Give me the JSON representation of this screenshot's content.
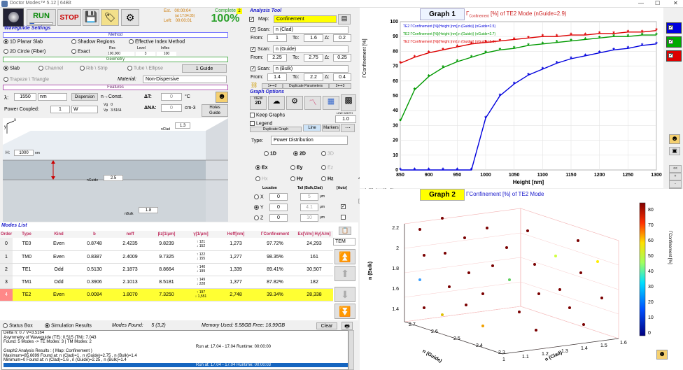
{
  "app": {
    "title": "Doctor Modes™ 5.12  |  64Bit"
  },
  "toolbar": {
    "run": "RUN",
    "stop": "STOP",
    "est_label": "Est.",
    "est_value": "00:00:04",
    "est_at": "(at 17:04:35)",
    "left_label": "Left:",
    "left_value": "00:00:01",
    "complete_label": "Complete",
    "complete_badge": "2",
    "complete_pct": "100%"
  },
  "waveguide": {
    "title": "Waveguide Settings",
    "method_hdr": "Method",
    "m1": "1D Planar Slab",
    "m2": "Shadow Regions",
    "m3": "Effective Index Method",
    "m4": "2D Circle (Fiber)",
    "m5": "Exact",
    "res_label": "Res",
    "level_label": "Level",
    "infles_label": "Infles",
    "res_value": "100,000",
    "level_value": "3",
    "infles_value": "100",
    "geom_hdr": "Geometry",
    "g1": "Slab",
    "g2": "Channel",
    "g3": "Rib \\ Strip",
    "g4": "Tube \\ Ellipse",
    "g5": "Trapeze \\ Triangle",
    "guide_btn": "1 Guide",
    "material_label": "Material:",
    "material_value": "Non-Dispersive",
    "feat_hdr": "Features",
    "lambda_label": "λ:",
    "lambda_value": "1550",
    "lambda_unit": "nm",
    "dispersion_btn": "Dispersion",
    "nconst": "n→Const.",
    "dT_label": "ΔT:",
    "dT_value": "0",
    "dT_unit": "°C",
    "power_label": "Power Coupled:",
    "power_value": "1",
    "power_unit": "W",
    "vg_label": "Vg",
    "vg_value": "0",
    "vp_label": "Vp",
    "vp_value": "3.5164",
    "dNA_label": "ΔNA:",
    "dNA_value": "0",
    "dNA_unit": "cm-3",
    "holes_btn": "Holes",
    "holes_sub": "Guide",
    "nclad_label": "nClad",
    "nclad_value": "1.3",
    "h_label": "H:",
    "h_value": "1000",
    "h_unit": "nm",
    "nguide_label": "nGuide",
    "nguide_value": "2.5",
    "nbulk_label": "nBulk",
    "nbulk_value": "1.8",
    "axis_y": "y",
    "axis_x": "x"
  },
  "analysis": {
    "title": "Analysis Tool",
    "map_label": "Map:",
    "map_value": "Confinement",
    "scan1_label": "Scan:",
    "scan1_value": "n (Clad)",
    "from_label": "From:",
    "to_label": "To:",
    "delta_label": "Δ:",
    "s1_from": "1",
    "s1_to": "1.6",
    "s1_d": "0.2",
    "scan2_value": "n (Guide)",
    "s2_from": "2.25",
    "s2_to": "2.75",
    "s2_d": "0.25",
    "scan3_value": "n (Bulk)",
    "s3_from": "1.4",
    "s3_to": "2.2",
    "s3_d": "0.4",
    "dup_params": "Duplicate Parameters",
    "ar1": "1⟷2",
    "ar2": "2⟷3"
  },
  "graph_opts": {
    "title": "Graph Options",
    "keep": "Keep Graphs",
    "legend": "Legend",
    "dup_graph": "Duplicate Graph",
    "line": "Line",
    "markers": "Markers",
    "line_width_label": "LINE WIDTH",
    "line_width": "1.0",
    "type_label": "Type:",
    "type_value": "Power Distribution",
    "d1": "1D",
    "d2": "2D",
    "d3": "3D",
    "view_label": "VIEW",
    "view_value": "2D",
    "ex": "Ex",
    "ey": "Ey",
    "ez": "Ez",
    "hx": "Hx",
    "hy": "Hy",
    "hz": "Hz",
    "location_label": "Location",
    "tail_label": "Tail (Bulk,Clad)",
    "auto_label": "[Auto]",
    "x_label": "X",
    "x_val": "0",
    "x_tail": "5",
    "y_label": "Y",
    "y_val": "0",
    "y_tail": "4.1",
    "z_label": "Z",
    "z_val": "0",
    "z_tail": "10",
    "unit": "μm",
    "axis_limit": "AXIS LIMIT",
    "al0": "0",
    "al1": "107",
    "al2": "0",
    "update_colorbar": "Update ColorBar"
  },
  "modes": {
    "title": "Modes List",
    "headers": [
      "Order",
      "Type",
      "Kind",
      "b",
      "neff",
      "βz[1/μm]",
      "γ[1/μm]",
      "Heff[nm]",
      "ΓConfinement",
      "Ex[V/m] Hy[A/m]"
    ],
    "rows": [
      {
        "order": "0",
        "type": "TE0",
        "kind": "Even",
        "b": "0.8748",
        "neff": "2.4235",
        "beta": "9.8239",
        "g1": "↑ 121",
        "g2": "↓ 152",
        "heff": "1,273",
        "conf": "97.72%",
        "e": "24,293"
      },
      {
        "order": "1",
        "type": "TM0",
        "kind": "Even",
        "b": "0.8387",
        "neff": "2.4009",
        "beta": "9.7325",
        "g1": "↑ 122",
        "g2": "↓ 155",
        "heff": "1,277",
        "conf": "98.35%",
        "e": "161"
      },
      {
        "order": "2",
        "type": "TE1",
        "kind": "Odd",
        "b": "0.5130",
        "neff": "2.1873",
        "beta": "8.8664",
        "g1": "↑ 140",
        "g2": "↓ 199",
        "heff": "1,339",
        "conf": "89.41%",
        "e": "30,507"
      },
      {
        "order": "3",
        "type": "TM1",
        "kind": "Odd",
        "b": "0.3906",
        "neff": "2.1013",
        "beta": "8.5181",
        "g1": "↑ 149",
        "g2": "↓ 228",
        "heff": "1,377",
        "conf": "87.82%",
        "e": "182"
      },
      {
        "order": "4",
        "type": "TE2",
        "kind": "Even",
        "b": "0.0084",
        "neff": "1.8070",
        "beta": "7.3250",
        "g1": "↑ 197",
        "g2": "↓ 1,551",
        "heff": "2,748",
        "conf": "39.34%",
        "e": "28,338"
      }
    ],
    "tem": "TEM"
  },
  "status": {
    "status_box": "Status Box",
    "sim_results": "Simulation Results",
    "modes_found_label": "Modes Found:",
    "modes_found": "5 (3,2)",
    "memory": "Memory Used: 5.58GB  Free: 16.99GB",
    "clear": "Clear",
    "lines": [
      "Delta n: 0.7        V=3.5164",
      "Asymmetry of Waveguide (TE): 0.515        (TM): 7.043",
      "Found: 5 Modes ->  TE Modes: 3   |  TM Modes: 2",
      "",
      "Graph2 Analysis Results : ( Map: Confinement )",
      "Maximum=85.6699  Found at: n (Clad)=1 , n (Guide)=2.75 , n (Bulk)=1.4",
      "Minimum=0  Found at: n (Clad)=1.6 , n (Guide)=2.25 , n (Bulk)=1.4"
    ],
    "run1": "Run at: 17.04 - 17.04   Runtime: 00:00:00",
    "run2": "Run at: 17.04 - 17.04   Runtime: 00:00:03"
  },
  "graph1": {
    "label": "Graph 1",
    "title_pre": "Γ",
    "title_sub": "Confinement",
    "title_post": " [%] of TE2 Mode (nGuide=2.9)",
    "legend": [
      "TE2 ΓConfinement [%](Height [nm],n (Guide)) (nGuide=2.5)",
      "TE2 ΓConfinement [%](Height [nm],n (Guide)) (nGuide=2.7)",
      "TE2 ΓConfinement [%](Height [nm],n (Guide)) (nGuide=2.9)"
    ]
  },
  "graph2": {
    "label": "Graph 2",
    "title": "ΓConfinement [%] of TE2 Mode",
    "cb_label": "ΓConfinement [%]",
    "cb_ticks": [
      "80",
      "70",
      "60",
      "50",
      "40",
      "30",
      "20",
      "10",
      "0"
    ],
    "ylabel": "n (Bulk)",
    "xlabel1": "n (Guide)",
    "xlabel2": "n (Clad)",
    "zticks": [
      "2.2",
      "2",
      "1.8",
      "1.6",
      "1.4"
    ],
    "gticks": [
      "2.7",
      "2.6",
      "2.5",
      "2.4",
      "2.3"
    ],
    "cticks": [
      "1",
      "1.1",
      "1.2",
      "1.3",
      "1.4",
      "1.5",
      "1.6"
    ]
  },
  "colors": {
    "s1": "#0000dd",
    "s2": "#009900",
    "s3": "#dd0000",
    "accent": "#ffff00"
  },
  "chart_data": {
    "type": "line",
    "title": "ΓConfinement [%] of TE2 Mode (nGuide=2.9)",
    "xlabel": "Height [nm]",
    "ylabel": "ΓConfinement [%]",
    "xlim": [
      850,
      1300
    ],
    "ylim": [
      0,
      100
    ],
    "x": [
      850,
      875,
      900,
      925,
      950,
      975,
      1000,
      1025,
      1050,
      1075,
      1100,
      1125,
      1150,
      1175,
      1200,
      1225,
      1250,
      1275,
      1300
    ],
    "xticks": [
      "850",
      "900",
      "950",
      "1000",
      "1050",
      "1100",
      "1150",
      "1200",
      "1250",
      "1300"
    ],
    "yticks": [
      "0",
      "10",
      "20",
      "30",
      "40",
      "50",
      "60",
      "70",
      "80",
      "90",
      "100"
    ],
    "series": [
      {
        "name": "TE2 ΓConfinement [%](Height [nm],n (Guide)) (nGuide=2.5)",
        "values": [
          0,
          0,
          0,
          0,
          0,
          0,
          35,
          50,
          58,
          64,
          68,
          72,
          75,
          77,
          79,
          81,
          82,
          84,
          85
        ]
      },
      {
        "name": "TE2 ΓConfinement [%](Height [nm],n (Guide)) (nGuide=2.7)",
        "values": [
          33,
          54,
          63,
          69,
          73,
          76,
          79,
          81,
          82,
          84,
          85,
          86,
          87,
          88,
          89,
          90,
          90,
          91,
          91
        ]
      },
      {
        "name": "TE2 ΓConfinement [%](Height [nm],n (Guide)) (nGuide=2.9)",
        "values": [
          72,
          76,
          79,
          81,
          83,
          85,
          86,
          87,
          88,
          89,
          90,
          90,
          91,
          91,
          92,
          92,
          93,
          93,
          94
        ]
      }
    ]
  }
}
